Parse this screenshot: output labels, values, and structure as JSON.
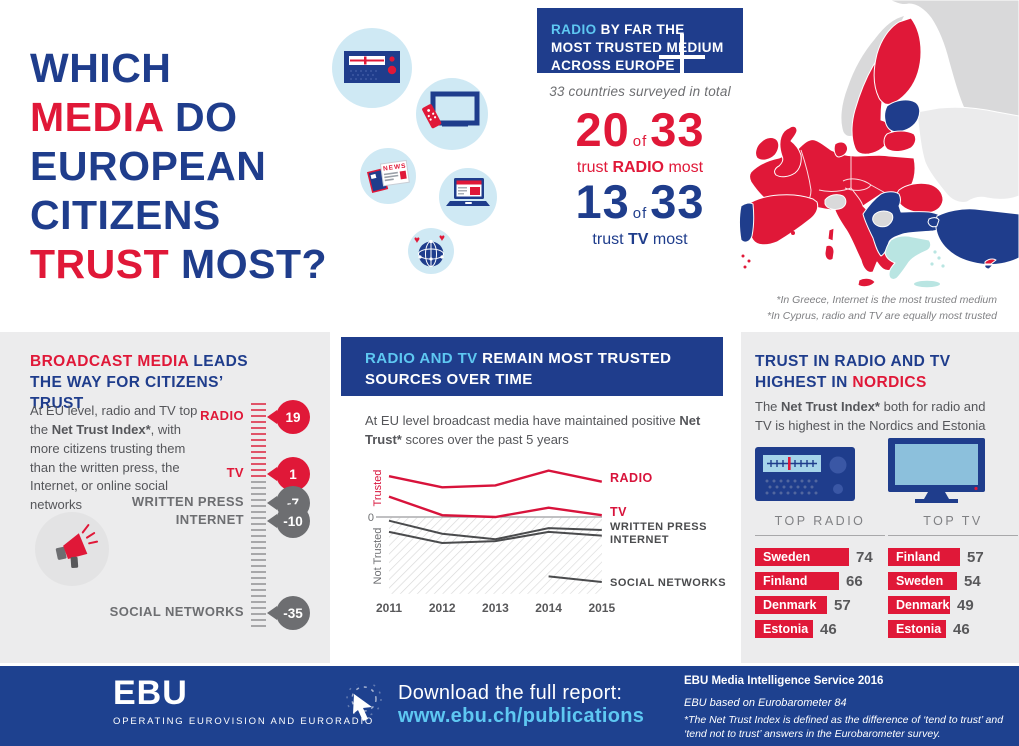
{
  "title": {
    "lines": [
      [
        {
          "t": "WHICH",
          "c": "blue"
        }
      ],
      [
        {
          "t": "MEDIA",
          "c": "red"
        },
        {
          "t": " DO",
          "c": "blue"
        }
      ],
      [
        {
          "t": "EUROPEAN",
          "c": "blue"
        }
      ],
      [
        {
          "t": "CITIZENS",
          "c": "blue"
        }
      ],
      [
        {
          "t": "TRUST",
          "c": "red"
        },
        {
          "t": " MOST?",
          "c": "blue"
        }
      ]
    ]
  },
  "survey": {
    "banner": {
      "highlight": "RADIO",
      "rest": " BY FAR THE MOST TRUSTED MEDIUM ACROSS EUROPE"
    },
    "subtitle": "33 countries surveyed in total",
    "stats": [
      {
        "value": "20",
        "of": "of",
        "total": "33",
        "pre": "trust ",
        "bold": "RADIO",
        "post": " most"
      },
      {
        "value": "13",
        "of": "of",
        "total": "33",
        "pre": "trust ",
        "bold": "TV",
        "post": " most"
      }
    ]
  },
  "map": {
    "footnotes": [
      "*In Greece, Internet is the most trusted medium",
      "*In Cyprus, radio and TV are equally most trusted"
    ],
    "legend_colors": {
      "radio": "#e01838",
      "tv": "#1f3d8c",
      "internet": "#b9e5e2",
      "not_surveyed": "#d9d9da"
    }
  },
  "panel_broadcast": {
    "heading_red": "BROADCAST MEDIA ",
    "heading_blue": "LEADS THE WAY FOR CITIZENS’ TRUST",
    "body_pre": "At EU level, radio and TV top the ",
    "body_bold": "Net Trust Index*",
    "body_post": ", with more citizens trusting them than the written press, the Internet, or online social networks"
  },
  "panel_chart": {
    "heading_highlight": "RADIO AND TV ",
    "heading_rest": "REMAIN MOST TRUSTED SOURCES OVER TIME",
    "body_pre": "At EU level broadcast media have maintained positive ",
    "body_bold": "Net Trust*",
    "body_post": " scores over the past 5 years"
  },
  "panel_nordics": {
    "heading_blue": "TRUST IN RADIO AND TV HIGHEST IN ",
    "heading_red": "NORDICS",
    "body_pre": "The ",
    "body_bold": "Net Trust Index*",
    "body_post": " both for radio and TV is highest in the Nordics and Estonia"
  },
  "footer": {
    "brand": "EBU",
    "tagline": "OPERATING EUROVISION AND EURORADIO",
    "download_label": "Download the full report:",
    "download_url": "www.ebu.ch/publications",
    "service": "EBU Media Intelligence Service 2016",
    "source": "EBU based on Eurobarometer 84",
    "note": "*The Net Trust Index is defined as the difference of ‘tend to trust’ and ‘tend not to trust’ answers in the Eurobarometer survey."
  },
  "chart_data": [
    {
      "type": "line",
      "title": "RADIO AND TV REMAIN MOST TRUSTED SOURCES OVER TIME",
      "x": [
        2011,
        2012,
        2013,
        2014,
        2015
      ],
      "series": [
        {
          "name": "RADIO",
          "color": "#d8133b",
          "values": [
            22,
            16,
            17,
            25,
            19
          ]
        },
        {
          "name": "TV",
          "color": "#d8133b",
          "values": [
            11,
            1,
            0,
            5,
            1
          ]
        },
        {
          "name": "WRITTEN PRESS",
          "color": "#4a4b4d",
          "values": [
            -2,
            -9,
            -12,
            -6,
            -7
          ]
        },
        {
          "name": "INTERNET",
          "color": "#4a4b4d",
          "values": [
            -8,
            -14,
            -13,
            -8,
            -10
          ]
        },
        {
          "name": "SOCIAL NETWORKS",
          "color": "#4a4b4d",
          "values": [
            null,
            null,
            null,
            -32,
            -35
          ]
        }
      ],
      "ylabel_positive": "Trusted",
      "ylabel_negative": "Not Trusted",
      "zero_label": "0",
      "ylim": [
        -42,
        28
      ],
      "grid": false,
      "legend_position": "right"
    },
    {
      "type": "bar",
      "title": "",
      "categories": [
        "RADIO",
        "TV",
        "WRITTEN PRESS",
        "INTERNET",
        "SOCIAL NETWORKS"
      ],
      "values": [
        19,
        1,
        -7,
        -10,
        -35
      ],
      "colors": [
        "#e01838",
        "#e01838",
        "#6d6e71",
        "#6d6e71",
        "#6d6e71"
      ]
    },
    {
      "type": "bar",
      "title": "TOP RADIO",
      "categories": [
        "Sweden",
        "Finland",
        "Denmark",
        "Estonia"
      ],
      "values": [
        74,
        66,
        57,
        46
      ],
      "bar_color": "#e01838"
    },
    {
      "type": "bar",
      "title": "TOP TV",
      "categories": [
        "Finland",
        "Sweden",
        "Denmark",
        "Estonia"
      ],
      "values": [
        57,
        54,
        49,
        46
      ],
      "bar_color": "#e01838"
    }
  ]
}
